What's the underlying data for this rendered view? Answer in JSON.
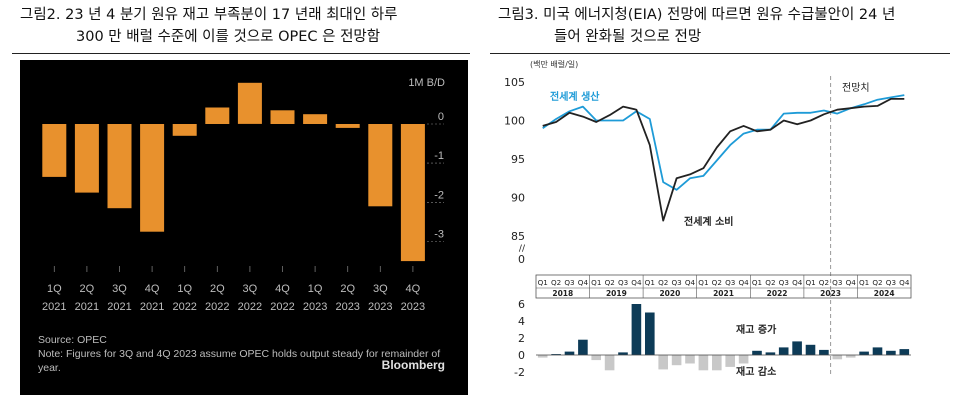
{
  "figure1": {
    "caption_num": "그림2.",
    "caption_line1": "23 년 4 분기 원유 재고 부족분이 17 년래 최대인 하루",
    "caption_line2": "300 만 배럴 수준에 이를 것으로 OPEC 은 전망함",
    "source": "Source: OPEC",
    "note_line1": "Note: Figures for 3Q and 4Q 2023 assume OPEC holds output steady for remainder of",
    "note_line2": "year.",
    "brand": "Bloomberg",
    "colors": {
      "background": "#000000",
      "bar": "#E8912D",
      "text": "#BDBDBD"
    }
  },
  "figure2": {
    "caption_num": "그림3.",
    "caption_line1": "미국 에너지청(EIA) 전망에 따르면 원유 수급불안이 24 년",
    "caption_line2": "들어 완화될 것으로 전망",
    "unit_label": "(백만 배럴/일)",
    "forecast_label": "전망치",
    "colors": {
      "production": "#1E9BD7",
      "consumption": "#222222",
      "bar_positive": "#0D3B57",
      "bar_negative": "#C8C8C8",
      "divider": "#999999"
    }
  },
  "chart_data": [
    {
      "type": "bar",
      "categories": [
        "1Q 2021",
        "2Q 2021",
        "3Q 2021",
        "4Q 2021",
        "1Q 2022",
        "2Q 2022",
        "3Q 2022",
        "4Q 2022",
        "1Q 2023",
        "2Q 2023",
        "3Q 2023",
        "4Q 2023"
      ],
      "category_lines": [
        [
          "1Q",
          "2021"
        ],
        [
          "2Q",
          "2021"
        ],
        [
          "3Q",
          "2021"
        ],
        [
          "4Q",
          "2021"
        ],
        [
          "1Q",
          "2022"
        ],
        [
          "2Q",
          "2022"
        ],
        [
          "3Q",
          "2022"
        ],
        [
          "4Q",
          "2022"
        ],
        [
          "1Q",
          "2023"
        ],
        [
          "2Q",
          "2023"
        ],
        [
          "3Q",
          "2023"
        ],
        [
          "4Q",
          "2023"
        ]
      ],
      "values": [
        -1.35,
        -1.75,
        -2.15,
        -2.75,
        -0.3,
        0.42,
        1.05,
        0.35,
        0.25,
        -0.1,
        -2.1,
        -3.5
      ],
      "ylim": [
        -3.6,
        1.25
      ],
      "yticks": [
        0,
        -1,
        -2,
        -3
      ],
      "ytick_labels": [
        "0",
        "-1",
        "-2",
        "-3"
      ],
      "yunit_label": "1M B/D",
      "grid": false
    },
    {
      "type": "line",
      "x": [
        "2018Q1",
        "2018Q2",
        "2018Q3",
        "2018Q4",
        "2019Q1",
        "2019Q2",
        "2019Q3",
        "2019Q4",
        "2020Q1",
        "2020Q2",
        "2020Q3",
        "2020Q4",
        "2021Q1",
        "2021Q2",
        "2021Q3",
        "2021Q4",
        "2022Q1",
        "2022Q2",
        "2022Q3",
        "2022Q4",
        "2023Q1",
        "2023Q2",
        "2023Q3",
        "2023Q4",
        "2024Q1",
        "2024Q2",
        "2024Q3",
        "2024Q4"
      ],
      "series": [
        {
          "name": "전세계 생산",
          "values": [
            99.0,
            100.2,
            101.2,
            101.8,
            100.0,
            100.0,
            100.0,
            101.2,
            100.2,
            92.0,
            91.0,
            92.5,
            92.8,
            94.8,
            96.8,
            98.3,
            98.8,
            98.8,
            100.9,
            101.0,
            101.0,
            101.3,
            100.9,
            101.6,
            102.1,
            102.7,
            103.0,
            103.3
          ]
        },
        {
          "name": "전세계 소비",
          "values": [
            99.3,
            99.8,
            101.0,
            100.5,
            99.8,
            100.7,
            101.8,
            101.4,
            96.8,
            87.0,
            92.5,
            93.0,
            93.8,
            96.5,
            98.6,
            99.3,
            98.6,
            98.8,
            100.0,
            99.5,
            100.0,
            100.8,
            101.4,
            101.6,
            101.8,
            101.9,
            102.8,
            102.8
          ]
        }
      ],
      "ylim": [
        85,
        105
      ],
      "yticks": [
        85,
        90,
        95,
        100,
        105
      ],
      "ytick_labels": [
        "85",
        "90",
        "95",
        "100",
        "105"
      ],
      "extra_ytick_labels": [
        "//",
        "0"
      ],
      "quarter_labels": [
        "Q1",
        "Q2",
        "Q3",
        "Q4"
      ],
      "year_labels": [
        "2018",
        "2019",
        "2020",
        "2021",
        "2022",
        "2023",
        "2024"
      ],
      "forecast_start": "2023Q3",
      "grid": false
    },
    {
      "type": "bar",
      "x": [
        "2018Q1",
        "2018Q2",
        "2018Q3",
        "2018Q4",
        "2019Q1",
        "2019Q2",
        "2019Q3",
        "2019Q4",
        "2020Q1",
        "2020Q2",
        "2020Q3",
        "2020Q4",
        "2021Q1",
        "2021Q2",
        "2021Q3",
        "2021Q4",
        "2022Q1",
        "2022Q2",
        "2022Q3",
        "2022Q4",
        "2023Q1",
        "2023Q2",
        "2023Q3",
        "2023Q4",
        "2024Q1",
        "2024Q2",
        "2024Q3",
        "2024Q4"
      ],
      "values": [
        -0.3,
        0.1,
        0.4,
        1.8,
        -0.6,
        -1.8,
        0.3,
        6.0,
        5.0,
        -1.7,
        -1.2,
        -1.0,
        -1.8,
        -1.8,
        -1.4,
        -1.0,
        0.5,
        0.3,
        0.9,
        1.6,
        1.2,
        0.6,
        -0.5,
        -0.3,
        0.4,
        0.9,
        0.5,
        0.7
      ],
      "ylim": [
        -2,
        6
      ],
      "yticks": [
        -2,
        0,
        2,
        4,
        6
      ],
      "ytick_labels": [
        "-2",
        "0",
        "2",
        "4",
        "6"
      ],
      "annotations": [
        "재고 증가",
        "재고 감소"
      ],
      "grid": false
    }
  ]
}
